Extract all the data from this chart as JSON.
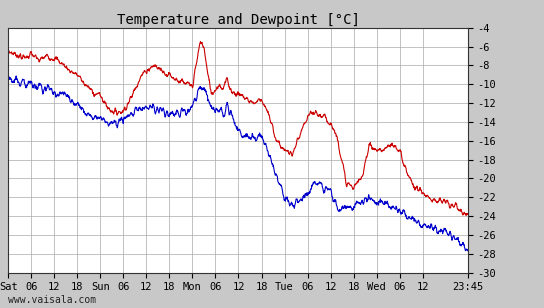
{
  "title": "Temperature and Dewpoint [°C]",
  "ylim": [
    -30,
    -4
  ],
  "yticks": [
    -30,
    -28,
    -26,
    -24,
    -22,
    -20,
    -18,
    -16,
    -14,
    -12,
    -10,
    -8,
    -6,
    -4
  ],
  "xtick_labels": [
    "Sat",
    "06",
    "12",
    "18",
    "Sun",
    "06",
    "12",
    "18",
    "Mon",
    "06",
    "12",
    "18",
    "Tue",
    "06",
    "12",
    "18",
    "Wed",
    "06",
    "12",
    "23:45"
  ],
  "xtick_positions": [
    0,
    6,
    12,
    18,
    24,
    30,
    36,
    42,
    48,
    54,
    60,
    66,
    72,
    78,
    84,
    90,
    96,
    102,
    108,
    119.75
  ],
  "xlim": [
    0,
    119.75
  ],
  "bg_color": "#c8c8c8",
  "plot_bg_color": "#ffffff",
  "grid_color": "#aaaaaa",
  "temp_color": "#cc0000",
  "dewpoint_color": "#0000cc",
  "line_width": 0.8,
  "watermark": "www.vaisala.com",
  "title_fontsize": 10,
  "tick_fontsize": 7.5
}
